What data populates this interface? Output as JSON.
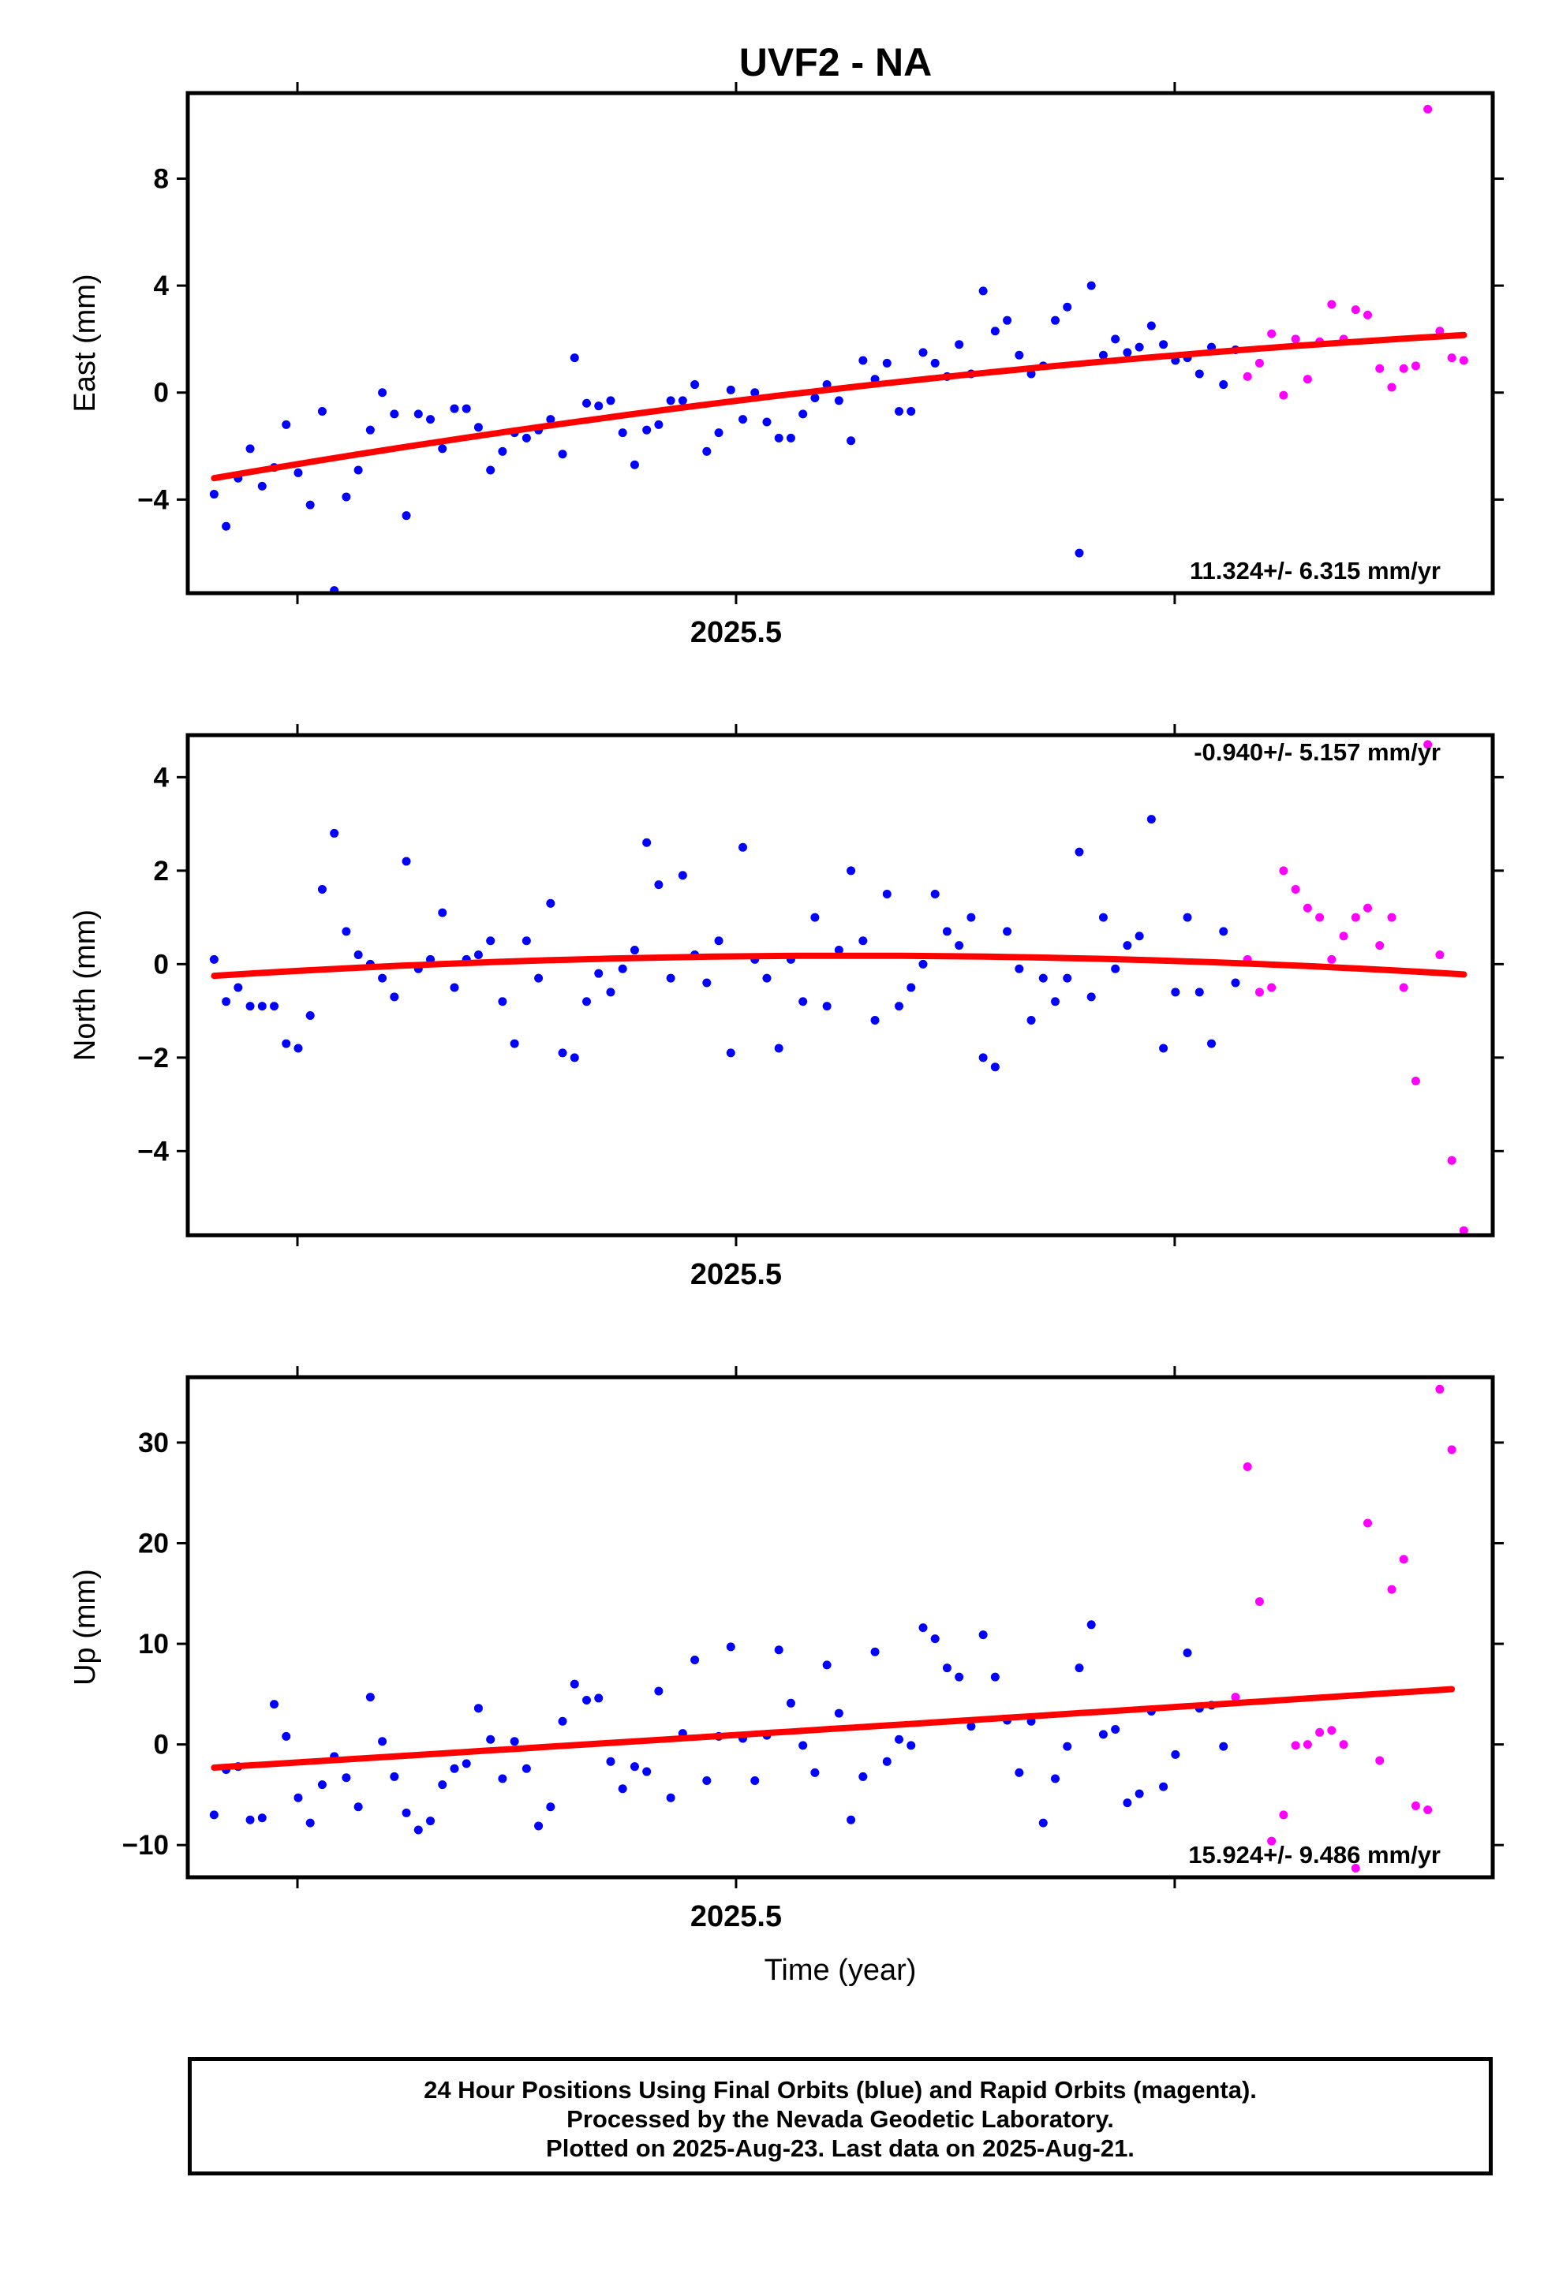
{
  "title": "UVF2 - NA",
  "colors": {
    "final": "#0000ff",
    "rapid": "#ff00ff",
    "trend": "#ff0000",
    "axis": "#000000"
  },
  "footer": {
    "line1": "24 Hour Positions Using Final Orbits (blue) and Rapid Orbits (magenta).",
    "line2": "Processed by the Nevada Geodetic Laboratory.",
    "line3": "Plotted on 2025-Aug-23. Last data on 2025-Aug-21."
  },
  "chart_data": [
    {
      "type": "scatter",
      "ylabel": "East (mm)",
      "xlabel": "",
      "x_tick_label": "2025.5",
      "xlim": [
        2025.25,
        2025.845
      ],
      "ylim": [
        -7.5,
        11.2
      ],
      "yticks": [
        8,
        4,
        0,
        -4
      ],
      "rate_label": "11.324+/- 6.315 mm/yr",
      "rate_position": "bottom-right",
      "x_start": 2025.262,
      "day": 0.005479,
      "trend": {
        "start": -3.2,
        "mid": 0.15,
        "end": 2.15
      },
      "final": [
        -3.8,
        -5.0,
        -3.2,
        -2.1,
        -3.5,
        -2.8,
        -1.2,
        -3.0,
        -4.2,
        -0.7,
        -7.4,
        -3.9,
        -2.9,
        -1.4,
        0.0,
        -0.8,
        -4.6,
        -0.8,
        -1.0,
        -2.1,
        -0.6,
        -0.6,
        -1.3,
        -2.9,
        -2.2,
        -1.5,
        -1.7,
        -1.4,
        -1.0,
        -2.3,
        1.3,
        -0.4,
        -0.5,
        -0.3,
        -1.5,
        -2.7,
        -1.4,
        -1.2,
        -0.3,
        -0.3,
        0.3,
        -2.2,
        -1.5,
        0.1,
        -1.0,
        0.0,
        -1.1,
        -1.7,
        -1.7,
        -0.8,
        -0.2,
        0.3,
        -0.3,
        -1.8,
        1.2,
        0.5,
        1.1,
        -0.7,
        -0.7,
        1.5,
        1.1,
        0.6,
        1.8,
        0.7,
        3.8,
        2.3,
        2.7,
        1.4,
        0.7,
        1.0,
        2.7,
        3.2,
        -6.0,
        4.0,
        1.4,
        2.0,
        1.5,
        1.7,
        2.5,
        1.8,
        1.2,
        1.3,
        0.7,
        1.7,
        0.3,
        1.6
      ],
      "rapid": [
        0.6,
        1.1,
        2.2,
        -0.1,
        2.0,
        0.5,
        1.9,
        3.3,
        2.0,
        3.1,
        2.9,
        0.9,
        0.2,
        0.9,
        1.0,
        10.6,
        2.3,
        1.3,
        1.2
      ]
    },
    {
      "type": "scatter",
      "ylabel": "North (mm)",
      "xlabel": "",
      "x_tick_label": "2025.5",
      "xlim": [
        2025.25,
        2025.845
      ],
      "ylim": [
        -5.8,
        4.9
      ],
      "yticks": [
        4,
        2,
        0,
        -2,
        -4
      ],
      "rate_label": "-0.940+/- 5.157 mm/yr",
      "rate_position": "top-right",
      "x_start": 2025.262,
      "day": 0.005479,
      "trend": {
        "start": -0.25,
        "mid": 0.18,
        "end": -0.22
      },
      "final": [
        0.1,
        -0.8,
        -0.5,
        -0.9,
        -0.9,
        -0.9,
        -1.7,
        -1.8,
        -1.1,
        1.6,
        2.8,
        0.7,
        0.2,
        0.0,
        -0.3,
        -0.7,
        2.2,
        -0.1,
        0.1,
        1.1,
        -0.5,
        0.1,
        0.2,
        0.5,
        -0.8,
        -1.7,
        0.5,
        -0.3,
        1.3,
        -1.9,
        -2.0,
        -0.8,
        -0.2,
        -0.6,
        -0.1,
        0.3,
        2.6,
        1.7,
        -0.3,
        1.9,
        0.2,
        -0.4,
        0.5,
        -1.9,
        2.5,
        0.1,
        -0.3,
        -1.8,
        0.1,
        -0.8,
        1.0,
        -0.9,
        0.3,
        2.0,
        0.5,
        -1.2,
        1.5,
        -0.9,
        -0.5,
        0.0,
        1.5,
        0.7,
        0.4,
        1.0,
        -2.0,
        -2.2,
        0.7,
        -0.1,
        -1.2,
        -0.3,
        -0.8,
        -0.3,
        2.4,
        -0.7,
        1.0,
        -0.1,
        0.4,
        0.6,
        3.1,
        -1.8,
        -0.6,
        1.0,
        -0.6,
        -1.7,
        0.7,
        -0.4
      ],
      "rapid": [
        0.1,
        -0.6,
        -0.5,
        2.0,
        1.6,
        1.2,
        1.0,
        0.1,
        0.6,
        1.0,
        1.2,
        0.4,
        1.0,
        -0.5,
        -2.5,
        4.7,
        0.2,
        -4.2,
        -5.7
      ]
    },
    {
      "type": "scatter",
      "ylabel": "Up (mm)",
      "xlabel": "Time (year)",
      "x_tick_label": "2025.5",
      "xlim": [
        2025.25,
        2025.845
      ],
      "ylim": [
        -13.2,
        36.5
      ],
      "yticks": [
        30,
        20,
        10,
        0,
        -10
      ],
      "rate_label": "15.924+/- 9.486 mm/yr",
      "rate_position": "bottom-right",
      "x_start": 2025.262,
      "day": 0.005479,
      "trend": {
        "start": -2.3,
        "mid": 1.55,
        "end": 5.5
      },
      "final": [
        -7.0,
        -2.5,
        -2.2,
        -7.5,
        -7.3,
        4.0,
        0.8,
        -5.3,
        -7.8,
        -4.0,
        -1.2,
        -3.3,
        -6.2,
        4.7,
        0.3,
        -3.2,
        -6.8,
        -8.5,
        -7.6,
        -4.0,
        -2.4,
        -1.9,
        3.6,
        0.5,
        -3.4,
        0.3,
        -2.4,
        -8.1,
        -6.2,
        2.3,
        6.0,
        4.4,
        4.6,
        -1.7,
        -4.4,
        -2.2,
        -2.7,
        5.3,
        -5.3,
        1.1,
        8.4,
        -3.6,
        0.8,
        9.7,
        0.6,
        -3.6,
        0.9,
        9.4,
        4.1,
        -0.1,
        -2.8,
        7.9,
        3.1,
        -7.5,
        -3.2,
        9.2,
        -1.7,
        0.5,
        -0.1,
        11.6,
        10.5,
        7.6,
        6.7,
        1.8,
        10.9,
        6.7,
        2.4,
        -2.8,
        2.3,
        -7.8,
        -3.4,
        -0.2,
        7.6,
        11.9,
        1.0,
        1.5,
        -5.8,
        -4.9,
        3.3,
        -4.2,
        -1.0,
        9.1,
        3.6,
        3.9,
        -0.2
      ],
      "rapid": [
        4.7,
        27.6,
        14.2,
        -9.6,
        -7.0,
        -0.1,
        0.0,
        1.2,
        1.4,
        0.0,
        -12.3,
        22.0,
        -1.6,
        15.4,
        18.4,
        -6.1,
        -6.5,
        35.3,
        29.3
      ]
    }
  ]
}
